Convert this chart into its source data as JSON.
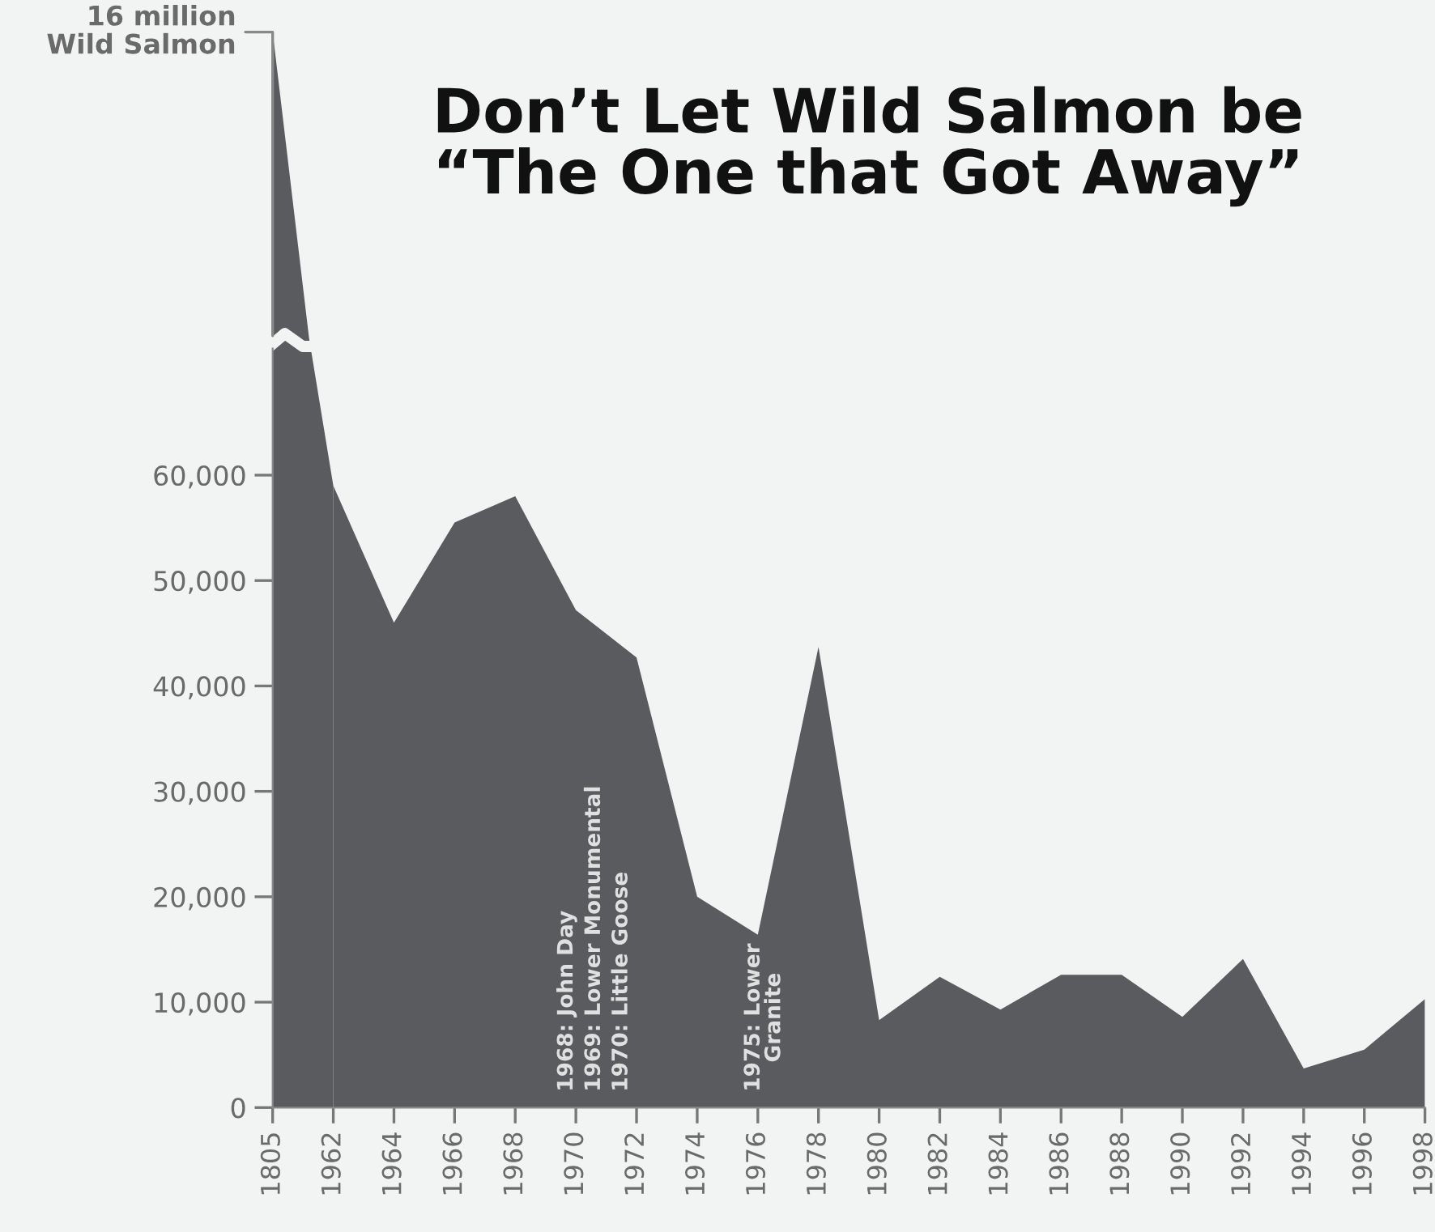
{
  "chart_data": {
    "type": "area",
    "title": "Don’t Let Wild Salmon be\n“The One that Got Away”",
    "categories": [
      "1805",
      "1962",
      "1964",
      "1966",
      "1968",
      "1970",
      "1972",
      "1974",
      "1976",
      "1978",
      "1980",
      "1982",
      "1984",
      "1986",
      "1988",
      "1990",
      "1992",
      "1994",
      "1996",
      "1998"
    ],
    "values": [
      null,
      59000,
      46000,
      55500,
      58000,
      47200,
      42700,
      20000,
      16400,
      43700,
      8300,
      12400,
      9300,
      12600,
      12600,
      8600,
      14100,
      3700,
      5500,
      10300
    ],
    "color": "#5a5b5e",
    "ylim": [
      0,
      72000
    ],
    "yticks": [
      {
        "value": 0,
        "label": "0"
      },
      {
        "value": 10000,
        "label": "10,000"
      },
      {
        "value": 20000,
        "label": "20,000"
      },
      {
        "value": 30000,
        "label": "30,000"
      },
      {
        "value": 40000,
        "label": "40,000"
      },
      {
        "value": 50000,
        "label": "50,000"
      },
      {
        "value": 60000,
        "label": "60,000"
      }
    ],
    "annotations": [
      "16 million\nWild Salmon",
      "1968: John Day",
      "1969: Lower Monumental",
      "1970: Little Goose",
      "1975: Lower\nGranite"
    ]
  }
}
